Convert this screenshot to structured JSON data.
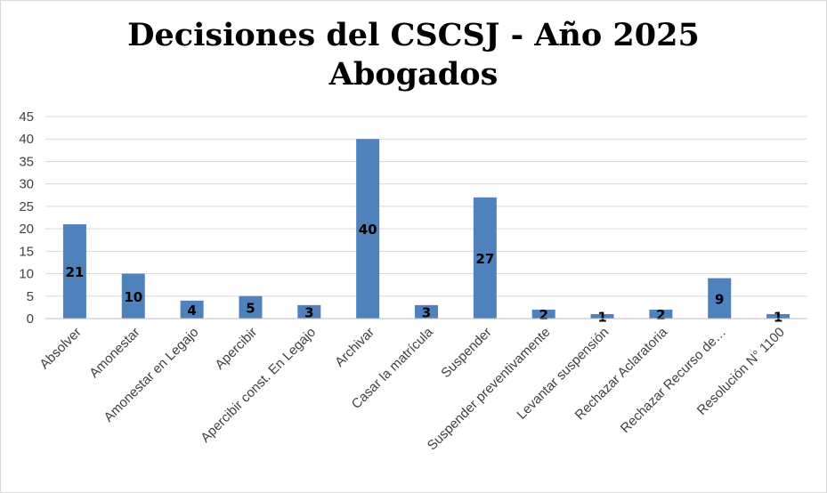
{
  "chart_data": {
    "type": "bar",
    "title_line1": "Decisiones del CSCSJ - Año 2025",
    "title_line2": "Abogados",
    "categories": [
      "Absolver",
      "Amonestar",
      "Amonestar en Legajo",
      "Apercibir",
      "Apercibir const. En Legajo",
      "Archivar",
      "Casar la matrícula",
      "Suspender",
      "Suspender preventivamente",
      "Levantar suspensión",
      "Rechazar Aclaratoria",
      "Rechazar Recurso de…",
      "Resolución N° 1100"
    ],
    "values": [
      21,
      10,
      4,
      5,
      3,
      40,
      3,
      27,
      2,
      1,
      2,
      9,
      1
    ],
    "ylim": [
      0,
      45
    ],
    "yticks": [
      0,
      5,
      10,
      15,
      20,
      25,
      30,
      35,
      40,
      45
    ],
    "grid": true,
    "bar_color": "#4f81bd",
    "grid_color": "#d9d9d9",
    "data_labels": true
  }
}
